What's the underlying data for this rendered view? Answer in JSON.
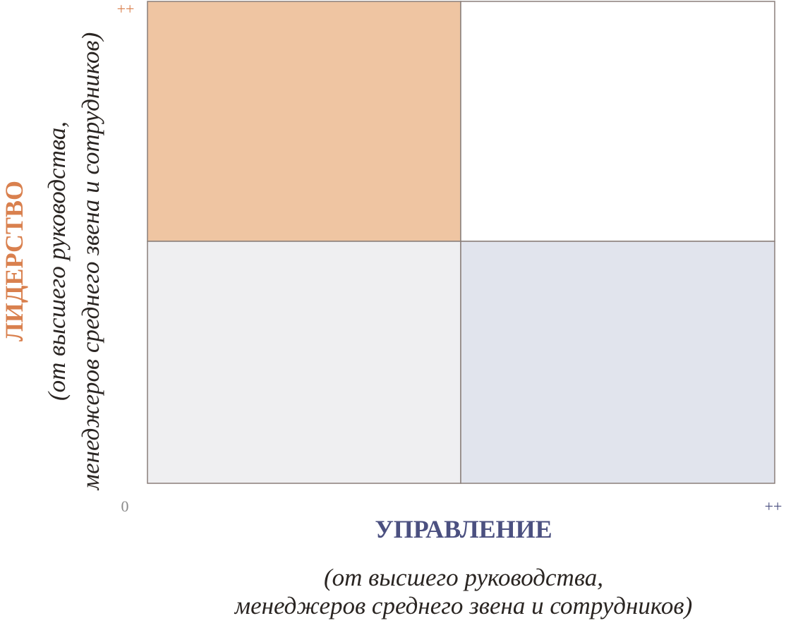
{
  "y_axis": {
    "label": "ЛИДЕРСТВО",
    "note_lines": [
      "(от высшего руководства,",
      "менеджеров среднего звена и сотрудников)"
    ],
    "max_label": "++"
  },
  "x_axis": {
    "label": "УПРАВЛЕНИЕ",
    "note_lines": [
      "(от высшего руководства,",
      "менеджеров среднего звена и сотрудников)"
    ],
    "max_label": "++"
  },
  "origin_label": "0"
}
